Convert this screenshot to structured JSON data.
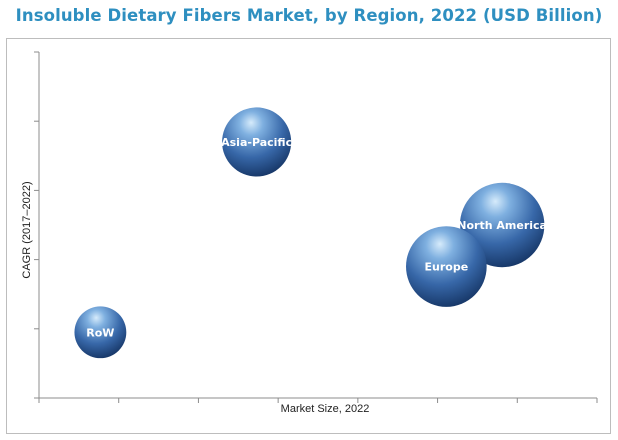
{
  "chart_data": {
    "type": "scatter",
    "title": "Insoluble Dietary Fibers Market, by Region, 2022 (USD Billion)",
    "xlabel": "Market Size, 2022",
    "ylabel": "CAGR (2017–2022)",
    "x_ticks": 7,
    "y_ticks": 5,
    "grid": false,
    "xlim": [
      0,
      10
    ],
    "ylim": [
      0,
      10
    ],
    "bubble_color": "#2f5f9a",
    "bubbles": [
      {
        "label": "Asia-Pacific",
        "x": 3.9,
        "y": 7.4,
        "size": 3.6
      },
      {
        "label": "North America",
        "x": 8.3,
        "y": 5.0,
        "size": 4.4
      },
      {
        "label": "Europe",
        "x": 7.3,
        "y": 3.8,
        "size": 4.2
      },
      {
        "label": "RoW",
        "x": 1.1,
        "y": 1.9,
        "size": 2.7
      }
    ]
  }
}
